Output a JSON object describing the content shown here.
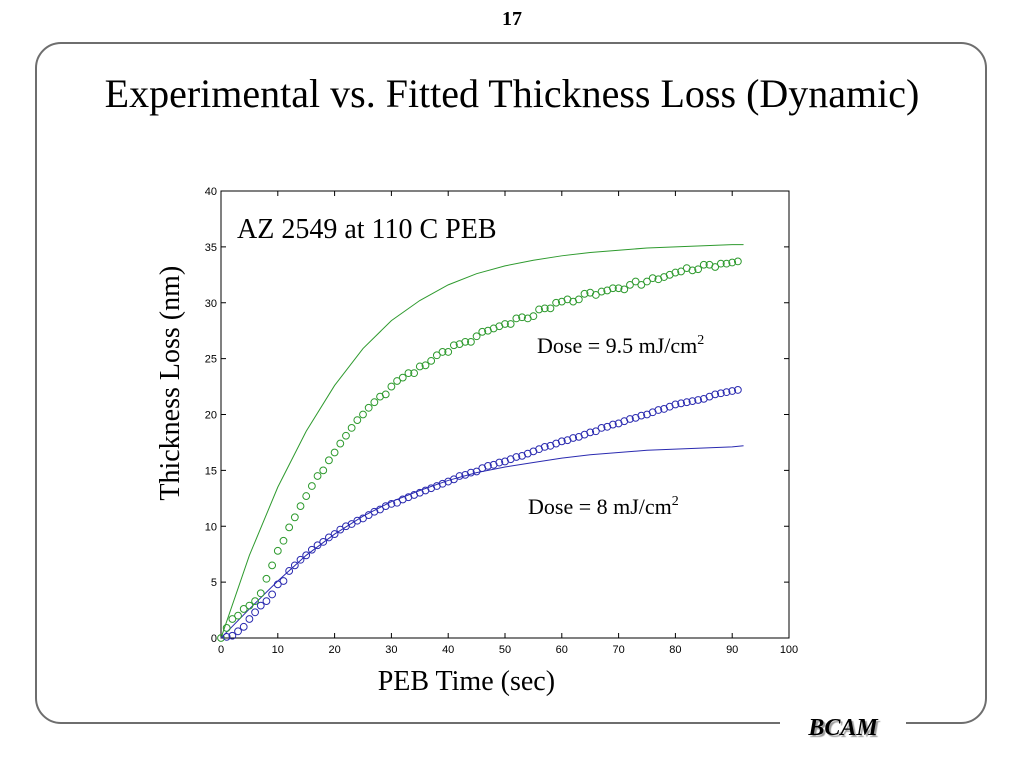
{
  "page_number": "17",
  "title": "Experimental vs. Fitted Thickness Loss (Dynamic)",
  "footer_logo": "BCAM",
  "colors": {
    "series_high_dose": "#2e9a2e",
    "series_low_dose": "#2a2ab0",
    "frame": "#6e6e6e"
  },
  "chart_data": {
    "type": "scatter",
    "title": "AZ 2549 at 110 C PEB",
    "xlabel": "PEB Time (sec)",
    "ylabel": "Thickness Loss (nm)",
    "xlim": [
      0,
      100
    ],
    "ylim": [
      0,
      40
    ],
    "xticks": [
      0,
      10,
      20,
      30,
      40,
      50,
      60,
      70,
      80,
      90,
      100
    ],
    "yticks": [
      0,
      5,
      10,
      15,
      20,
      25,
      30,
      35,
      40
    ],
    "grid": false,
    "annotations": [
      {
        "text": "Dose = 9.5 mJ/cm",
        "superscript": "2",
        "series": "high"
      },
      {
        "text": "Dose = 8 mJ/cm",
        "superscript": "2",
        "series": "low"
      }
    ],
    "series": [
      {
        "key": "high",
        "color": "#2e9a2e",
        "experimental": {
          "x": [
            0,
            1,
            2,
            3,
            4,
            5,
            6,
            7,
            8,
            9,
            10,
            11,
            12,
            13,
            14,
            15,
            16,
            17,
            18,
            19,
            20,
            21,
            22,
            23,
            24,
            25,
            26,
            27,
            28,
            29,
            30,
            31,
            32,
            33,
            34,
            35,
            36,
            37,
            38,
            39,
            40,
            41,
            42,
            43,
            44,
            45,
            46,
            47,
            48,
            49,
            50,
            51,
            52,
            53,
            54,
            55,
            56,
            57,
            58,
            59,
            60,
            61,
            62,
            63,
            64,
            65,
            66,
            67,
            68,
            69,
            70,
            71,
            72,
            73,
            74,
            75,
            76,
            77,
            78,
            79,
            80,
            81,
            82,
            83,
            84,
            85,
            86,
            87,
            88,
            89,
            90,
            91
          ],
          "y": [
            0.0,
            0.9,
            1.7,
            2.0,
            2.6,
            2.9,
            3.3,
            4.0,
            5.3,
            6.5,
            7.8,
            8.7,
            9.9,
            10.8,
            11.8,
            12.7,
            13.6,
            14.5,
            15.0,
            15.9,
            16.6,
            17.4,
            18.1,
            18.8,
            19.5,
            20.0,
            20.6,
            21.1,
            21.6,
            21.8,
            22.5,
            23.0,
            23.3,
            23.7,
            23.7,
            24.3,
            24.4,
            24.8,
            25.3,
            25.6,
            25.6,
            26.2,
            26.3,
            26.5,
            26.5,
            27.0,
            27.4,
            27.5,
            27.7,
            27.9,
            28.1,
            28.1,
            28.6,
            28.7,
            28.6,
            28.8,
            29.4,
            29.5,
            29.5,
            30.0,
            30.1,
            30.3,
            30.1,
            30.3,
            30.8,
            30.9,
            30.7,
            31.0,
            31.1,
            31.3,
            31.3,
            31.2,
            31.6,
            31.9,
            31.6,
            31.9,
            32.2,
            32.1,
            32.3,
            32.5,
            32.7,
            32.8,
            33.1,
            32.9,
            33.0,
            33.4,
            33.4,
            33.2,
            33.5,
            33.5,
            33.6,
            33.7
          ]
        },
        "fit": {
          "x": [
            0,
            5,
            10,
            15,
            20,
            25,
            30,
            35,
            40,
            45,
            50,
            55,
            60,
            65,
            70,
            75,
            80,
            85,
            90,
            92
          ],
          "y": [
            0.0,
            7.4,
            13.5,
            18.5,
            22.6,
            25.9,
            28.4,
            30.2,
            31.6,
            32.6,
            33.3,
            33.8,
            34.2,
            34.5,
            34.7,
            34.9,
            35.0,
            35.1,
            35.2,
            35.2
          ]
        }
      },
      {
        "key": "low",
        "color": "#2a2ab0",
        "experimental": {
          "x": [
            1,
            2,
            3,
            4,
            5,
            6,
            7,
            8,
            9,
            10,
            11,
            12,
            13,
            14,
            15,
            16,
            17,
            18,
            19,
            20,
            21,
            22,
            23,
            24,
            25,
            26,
            27,
            28,
            29,
            30,
            31,
            32,
            33,
            34,
            35,
            36,
            37,
            38,
            39,
            40,
            41,
            42,
            43,
            44,
            45,
            46,
            47,
            48,
            49,
            50,
            51,
            52,
            53,
            54,
            55,
            56,
            57,
            58,
            59,
            60,
            61,
            62,
            63,
            64,
            65,
            66,
            67,
            68,
            69,
            70,
            71,
            72,
            73,
            74,
            75,
            76,
            77,
            78,
            79,
            80,
            81,
            82,
            83,
            84,
            85,
            86,
            87,
            88,
            89,
            90,
            91
          ],
          "y": [
            0.1,
            0.2,
            0.6,
            1.0,
            1.7,
            2.3,
            2.9,
            3.3,
            3.9,
            4.8,
            5.1,
            6.0,
            6.5,
            7.0,
            7.4,
            7.9,
            8.3,
            8.6,
            9.0,
            9.3,
            9.7,
            10.0,
            10.2,
            10.5,
            10.7,
            11.0,
            11.3,
            11.5,
            11.8,
            12.0,
            12.1,
            12.4,
            12.6,
            12.8,
            13.0,
            13.2,
            13.4,
            13.6,
            13.8,
            14.0,
            14.2,
            14.5,
            14.6,
            14.8,
            14.9,
            15.2,
            15.4,
            15.5,
            15.7,
            15.8,
            16.0,
            16.2,
            16.3,
            16.5,
            16.7,
            16.9,
            17.1,
            17.2,
            17.4,
            17.6,
            17.7,
            17.9,
            18.0,
            18.2,
            18.4,
            18.5,
            18.8,
            18.9,
            19.1,
            19.2,
            19.4,
            19.6,
            19.7,
            19.9,
            20.0,
            20.2,
            20.4,
            20.5,
            20.7,
            20.9,
            21.0,
            21.1,
            21.2,
            21.3,
            21.4,
            21.6,
            21.8,
            21.9,
            22.0,
            22.1,
            22.2
          ]
        },
        "fit": {
          "x": [
            0,
            5,
            10,
            15,
            20,
            25,
            30,
            35,
            40,
            45,
            50,
            55,
            60,
            65,
            70,
            75,
            80,
            85,
            90,
            92
          ],
          "y": [
            0.0,
            2.6,
            5.1,
            7.4,
            9.3,
            10.9,
            12.2,
            13.2,
            14.1,
            14.8,
            15.3,
            15.7,
            16.1,
            16.4,
            16.6,
            16.8,
            16.9,
            17.0,
            17.1,
            17.2
          ]
        }
      }
    ]
  }
}
